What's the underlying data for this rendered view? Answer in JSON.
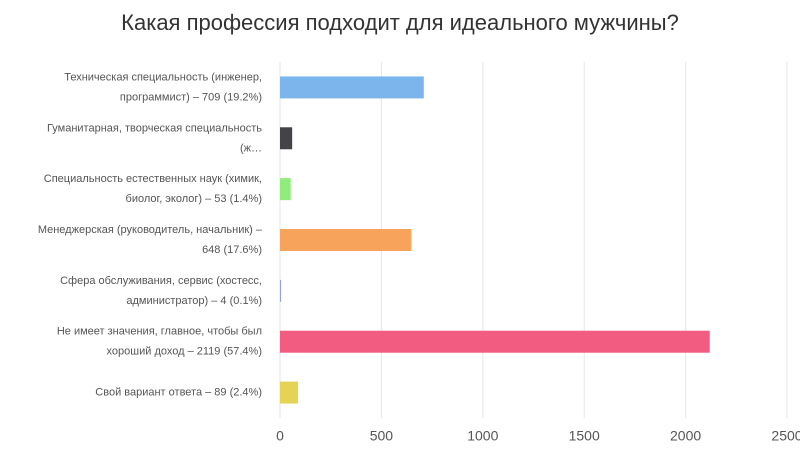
{
  "chart_data": {
    "type": "hbar",
    "title": "Какая профессия подходит для идеального мужчины?",
    "categories": [
      "Техническая специальность (инженер, программист) – 709 (19.2%)",
      "Гуманитарная, творческая специальность (ж…",
      "Специальность естественных наук (химик, биолог, эколог) – 53 (1.4%)",
      "Менеджерская (руководитель, начальник) – 648 (17.6%)",
      "Сфера обслуживания, сервис (хостесс, администратор) – 4 (0.1%)",
      "Не имеет значения, главное, чтобы был хороший доход – 2119 (57.4%)",
      "Свой вариант ответа – 89 (2.4%)"
    ],
    "values": [
      709,
      60,
      53,
      648,
      4,
      2119,
      89
    ],
    "colors": [
      "#7cb5ec",
      "#434348",
      "#90ed7d",
      "#f7a35c",
      "#8085e9",
      "#f15c80",
      "#e4d354"
    ],
    "xlim": [
      0,
      2500
    ],
    "xticks": [
      0,
      500,
      1000,
      1500,
      2000,
      2500
    ],
    "grid": true
  }
}
